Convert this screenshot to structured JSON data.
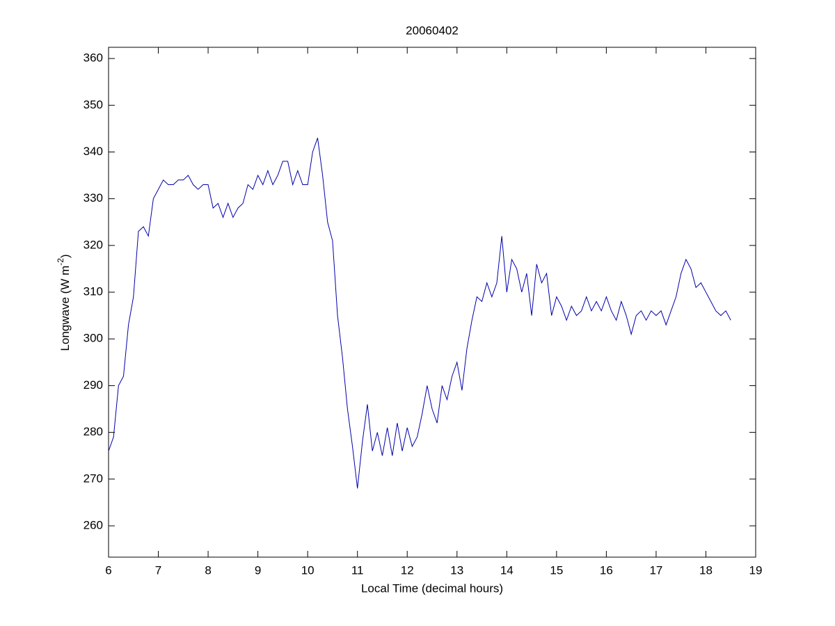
{
  "chart_data": {
    "type": "line",
    "title": "20060402",
    "xlabel": "Local Time (decimal hours)",
    "ylabel": [
      "Longwave (W m",
      "-2",
      ")"
    ],
    "xlim": [
      6,
      19
    ],
    "xticks": [
      6,
      7,
      8,
      9,
      10,
      11,
      12,
      13,
      14,
      15,
      16,
      17,
      18,
      19
    ],
    "ylim": [
      253.3,
      362.4
    ],
    "yticks": [
      260,
      270,
      280,
      290,
      300,
      310,
      320,
      330,
      340,
      350,
      360
    ],
    "grid": false,
    "series": [
      {
        "name": null,
        "color": "#0000aa",
        "x": [
          6.0,
          6.1,
          6.2,
          6.3,
          6.4,
          6.5,
          6.6,
          6.7,
          6.8,
          6.9,
          7.0,
          7.1,
          7.2,
          7.3,
          7.4,
          7.5,
          7.6,
          7.7,
          7.8,
          7.9,
          8.0,
          8.1,
          8.2,
          8.3,
          8.4,
          8.5,
          8.6,
          8.7,
          8.8,
          8.9,
          9.0,
          9.1,
          9.2,
          9.3,
          9.4,
          9.5,
          9.6,
          9.7,
          9.8,
          9.9,
          10.0,
          10.1,
          10.2,
          10.3,
          10.4,
          10.5,
          10.6,
          10.7,
          10.8,
          10.9,
          11.0,
          11.1,
          11.2,
          11.3,
          11.4,
          11.5,
          11.6,
          11.7,
          11.8,
          11.9,
          12.0,
          12.1,
          12.2,
          12.3,
          12.4,
          12.5,
          12.6,
          12.7,
          12.8,
          12.9,
          13.0,
          13.1,
          13.2,
          13.3,
          13.4,
          13.5,
          13.6,
          13.7,
          13.8,
          13.9,
          14.0,
          14.1,
          14.2,
          14.3,
          14.4,
          14.5,
          14.6,
          14.7,
          14.8,
          14.9,
          15.0,
          15.1,
          15.2,
          15.3,
          15.4,
          15.5,
          15.6,
          15.7,
          15.8,
          15.9,
          16.0,
          16.1,
          16.2,
          16.3,
          16.4,
          16.5,
          16.6,
          16.7,
          16.8,
          16.9,
          17.0,
          17.1,
          17.2,
          17.3,
          17.4,
          17.5,
          17.6,
          17.7,
          17.8,
          17.9,
          18.0,
          18.1,
          18.2,
          18.3,
          18.4,
          18.5
        ],
        "values": [
          276,
          279,
          290,
          292,
          303,
          309,
          323,
          324,
          322,
          330,
          332,
          334,
          333,
          333,
          334,
          334,
          335,
          333,
          332,
          333,
          333,
          328,
          329,
          326,
          329,
          326,
          328,
          329,
          333,
          332,
          335,
          333,
          336,
          333,
          335,
          338,
          338,
          333,
          336,
          333,
          333,
          340,
          343,
          335,
          325,
          321,
          305,
          296,
          285,
          277,
          268,
          278,
          286,
          276,
          280,
          275,
          281,
          275,
          282,
          276,
          281,
          277,
          279,
          284,
          290,
          285,
          282,
          290,
          287,
          292,
          295,
          289,
          298,
          304,
          309,
          308,
          312,
          309,
          312,
          322,
          310,
          317,
          315,
          310,
          314,
          305,
          316,
          312,
          314,
          305,
          309,
          307,
          304,
          307,
          305,
          306,
          309,
          306,
          308,
          306,
          309,
          306,
          304,
          308,
          305,
          301,
          305,
          306,
          304,
          306,
          305,
          306,
          303,
          306,
          309,
          314,
          317,
          315,
          311,
          312,
          310,
          308,
          306,
          305,
          306,
          304
        ]
      }
    ]
  }
}
